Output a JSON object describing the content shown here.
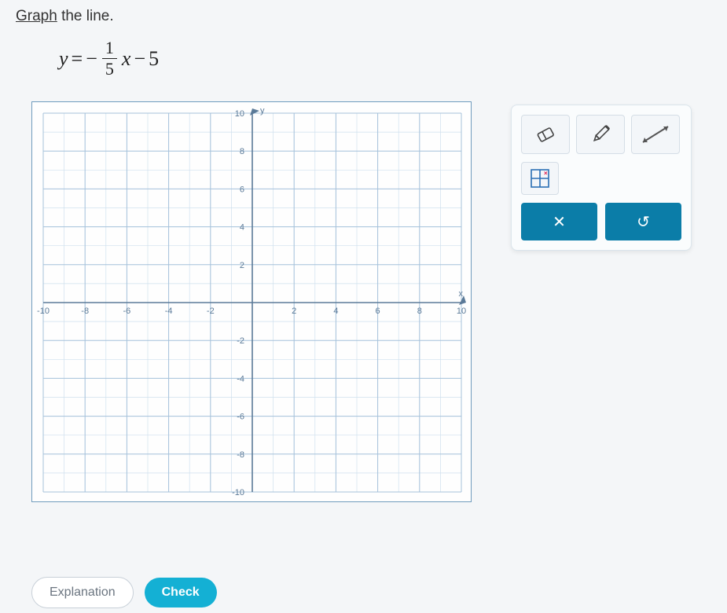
{
  "instruction": {
    "underlined": "Graph",
    "rest": " the line."
  },
  "equation": {
    "lhs": "y",
    "eq": "=",
    "neg": "−",
    "numerator": "1",
    "denominator": "5",
    "variable": "x",
    "minus": "−",
    "constant": "5"
  },
  "graph": {
    "type": "cartesian-grid",
    "xlim": [
      -10,
      10
    ],
    "ylim": [
      -10,
      10
    ],
    "major_step": 2,
    "minor_step": 1,
    "x_ticks": [
      -10,
      -8,
      -6,
      -4,
      -2,
      2,
      4,
      6,
      8,
      10
    ],
    "y_ticks": [
      -10,
      -8,
      -6,
      -4,
      -2,
      2,
      4,
      6,
      8,
      10
    ],
    "x_axis_label": "x",
    "y_axis_label": "y",
    "colors": {
      "background": "#fefefe",
      "minor_grid": "#cfe0ee",
      "major_grid": "#a6c2db",
      "axis": "#5b7a98",
      "tick_text": "#5b7a98",
      "border": "#6f9bbd"
    },
    "tick_fontsize": 11
  },
  "toolbox": {
    "tools": [
      {
        "name": "eraser-tool",
        "icon": "eraser"
      },
      {
        "name": "pencil-tool",
        "icon": "pencil"
      },
      {
        "name": "line-tool",
        "icon": "line"
      },
      {
        "name": "grid-tool",
        "icon": "grid"
      }
    ],
    "actions": [
      {
        "name": "close-button",
        "label": "✕",
        "bg": "#0b7da8"
      },
      {
        "name": "reset-button",
        "label": "↺",
        "bg": "#0b7da8"
      }
    ],
    "panel_bg": "#fafcfd",
    "tool_bg": "#f3f6f9"
  },
  "bottom_buttons": {
    "explanation": "Explanation",
    "check": "Check"
  }
}
